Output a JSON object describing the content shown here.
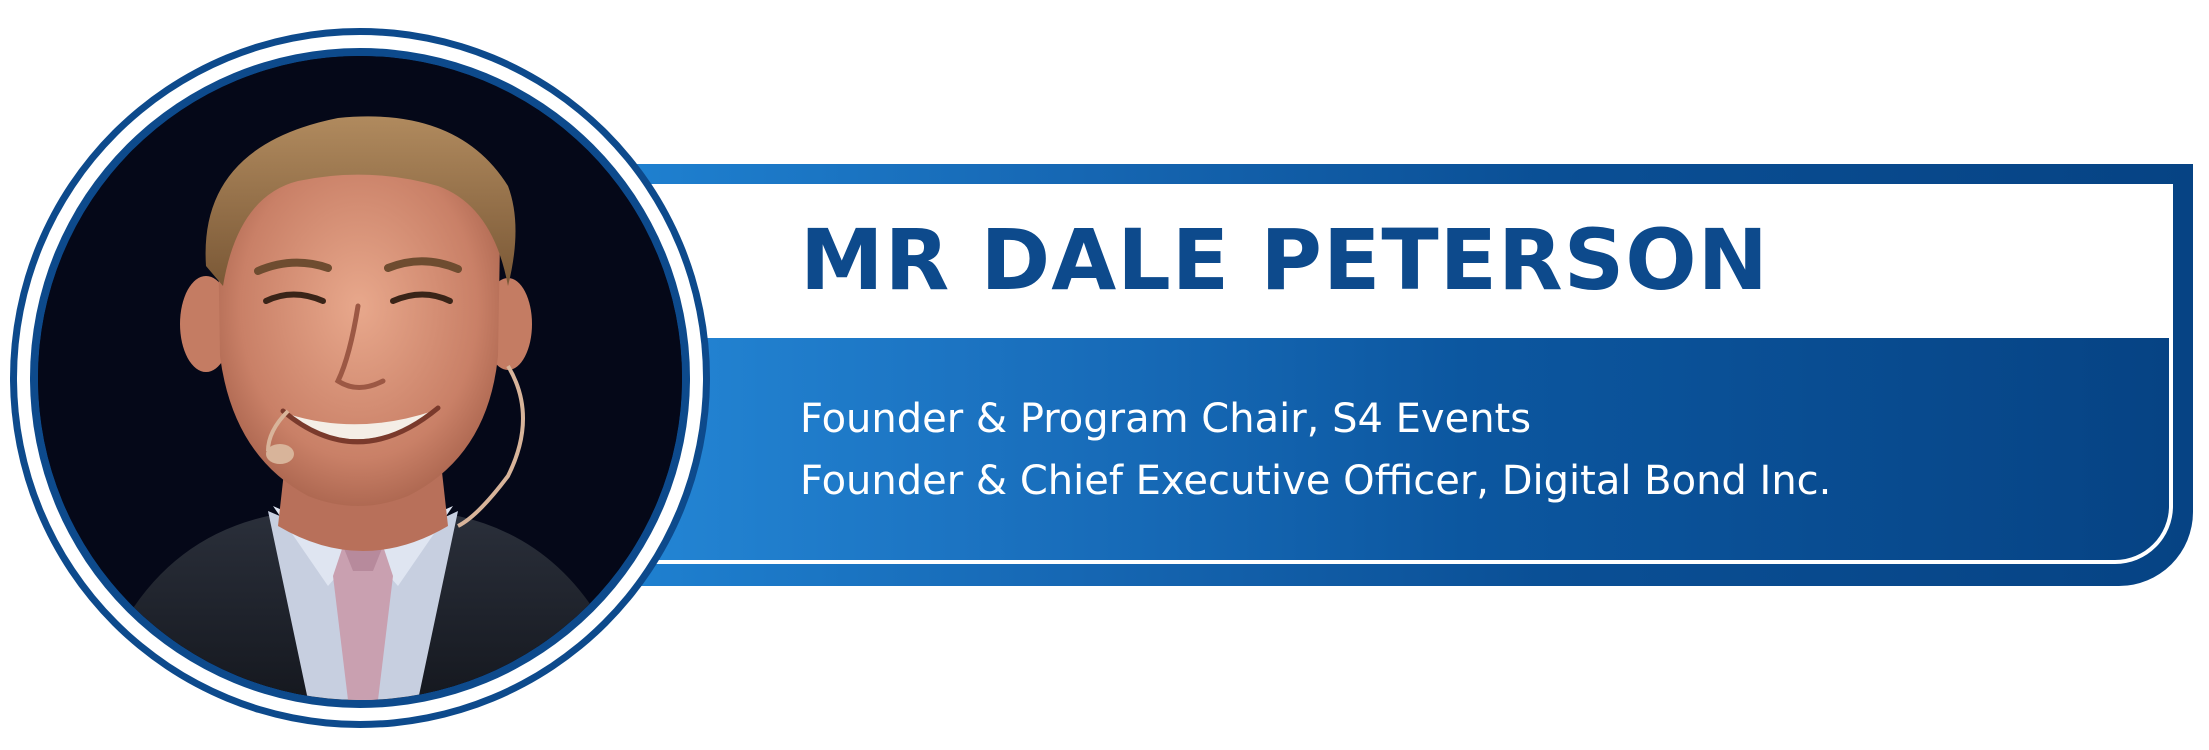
{
  "speaker": {
    "name": "MR DALE PETERSON",
    "titles": [
      "Founder & Program Chair, S4 Events",
      "Founder & Chief Executive Officer, Digital Bond Inc."
    ]
  },
  "colors": {
    "primary_blue": "#0d4a8c",
    "gradient_light": "#2487d6",
    "gradient_dark": "#064384",
    "photo_background": "#050818"
  }
}
